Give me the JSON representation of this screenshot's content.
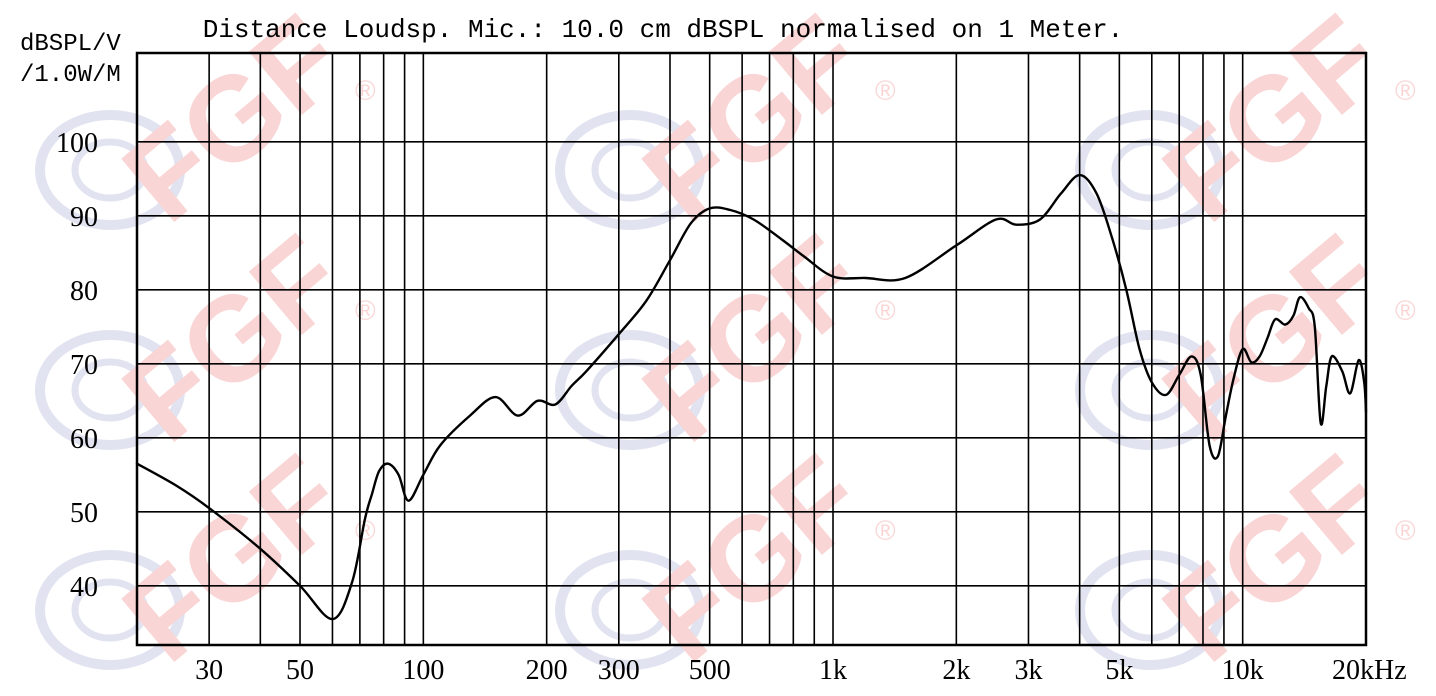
{
  "colors": {
    "background": "#ffffff",
    "grid": "#000000",
    "curve": "#000000",
    "watermark_text": "#f5b3b3",
    "watermark_logo": "#c9cde6"
  },
  "watermark": {
    "text": "FGF",
    "mark": "®"
  },
  "chart_data": {
    "type": "line",
    "title": "Distance Loudsp. Mic.: 10.0 cm dBSPL normalised on 1 Meter.",
    "ylabel_line1": "dBSPL/V",
    "ylabel_line2": "/1.0W/M",
    "x_scale": "log",
    "xlim": [
      20,
      20000
    ],
    "ylim": [
      32,
      112
    ],
    "grid": true,
    "y_ticks": [
      100,
      90,
      80,
      70,
      60,
      50,
      40
    ],
    "x_tick_labels": [
      {
        "value": 30,
        "label": "30"
      },
      {
        "value": 50,
        "label": "50"
      },
      {
        "value": 100,
        "label": "100"
      },
      {
        "value": 200,
        "label": "200"
      },
      {
        "value": 300,
        "label": "300"
      },
      {
        "value": 500,
        "label": "500"
      },
      {
        "value": 1000,
        "label": "1k"
      },
      {
        "value": 2000,
        "label": "2k"
      },
      {
        "value": 3000,
        "label": "3k"
      },
      {
        "value": 5000,
        "label": "5k"
      },
      {
        "value": 10000,
        "label": "10k"
      },
      {
        "value": 20000,
        "label": "20kHz"
      }
    ],
    "series": [
      {
        "x": [
          20,
          25,
          30,
          40,
          50,
          60,
          67,
          72,
          75,
          78,
          82,
          87,
          92,
          100,
          110,
          130,
          150,
          170,
          190,
          210,
          230,
          250,
          300,
          350,
          400,
          450,
          500,
          560,
          640,
          750,
          850,
          1000,
          1200,
          1500,
          2000,
          2500,
          2800,
          3200,
          3600,
          4000,
          4400,
          4800,
          5200,
          5600,
          6000,
          6500,
          7000,
          7500,
          7900,
          8300,
          8700,
          9100,
          9500,
          10000,
          10500,
          11000,
          11500,
          12000,
          12700,
          13300,
          13800,
          14500,
          15000,
          15500,
          16000,
          16500,
          17500,
          18300,
          19200,
          19800,
          20000
        ],
        "y": [
          56.5,
          53.5,
          50.5,
          45,
          40,
          35.5,
          40.5,
          49,
          52.5,
          55.5,
          56.5,
          55,
          51.5,
          55,
          59,
          63,
          65.5,
          63,
          65,
          64.5,
          67,
          69,
          74,
          78.5,
          84,
          89,
          91,
          90.8,
          89.5,
          86.8,
          84.5,
          81.8,
          81.6,
          81.6,
          86,
          89.5,
          88.8,
          89.5,
          93,
          95.5,
          93,
          87,
          80,
          72,
          67.5,
          65.8,
          68.5,
          71,
          68.5,
          59,
          57.5,
          63,
          68,
          72,
          70.2,
          71,
          73.5,
          76,
          75.3,
          76.5,
          79,
          77.5,
          75,
          62,
          67,
          71,
          69,
          66,
          70.5,
          67.5,
          63.5
        ]
      }
    ]
  }
}
